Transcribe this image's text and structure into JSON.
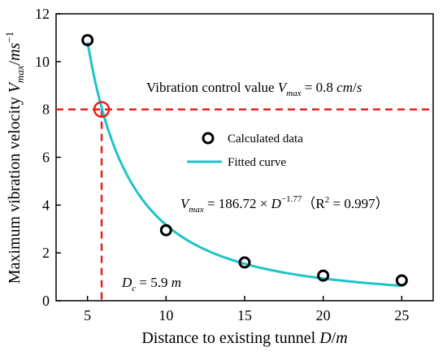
{
  "chart_data": {
    "type": "scatter",
    "xlabel_parts": [
      "Distance to existing tunnel ",
      "D",
      "/",
      "m"
    ],
    "ylabel_parts": [
      "Maximum vibration velocity ",
      "V",
      "max",
      "/",
      "ms",
      "−1"
    ],
    "xlim": [
      3,
      27
    ],
    "ylim": [
      0,
      12
    ],
    "xticks": [
      5,
      10,
      15,
      20,
      25
    ],
    "yticks": [
      0,
      2,
      4,
      6,
      8,
      10,
      12
    ],
    "series": [
      {
        "name": "Calculated data",
        "x": [
          5,
          10,
          15,
          20,
          25
        ],
        "y": [
          10.9,
          2.95,
          1.6,
          1.05,
          0.85
        ],
        "marker": "circle-open",
        "color": "#000000"
      },
      {
        "name": "Fitted curve",
        "model": {
          "a": 186.72,
          "b": -1.77
        },
        "x_range": [
          5,
          25
        ],
        "color": "#1fc4c8"
      }
    ],
    "control_line": {
      "y": 8,
      "x": 5.9,
      "color": "#e8201a",
      "label_parts": [
        "Vibration control value ",
        "V",
        "max",
        " = 0.8 ",
        "cm",
        "/",
        "s"
      ]
    },
    "critical_label_parts": [
      "D",
      "c",
      " = 5.9 ",
      "m"
    ],
    "equation_parts": [
      "V",
      "max",
      " = 186.72 × ",
      "D",
      "−1.77",
      "（R",
      "2",
      " = 0.997）"
    ],
    "legend": {
      "position": "center-right"
    }
  }
}
